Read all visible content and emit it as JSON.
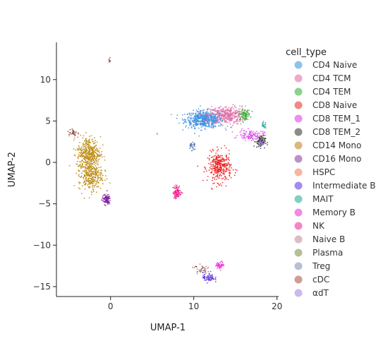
{
  "chart_data": {
    "type": "scatter",
    "xlabel": "UMAP-1",
    "ylabel": "UMAP-2",
    "xlim": [
      -6.5,
      20.2
    ],
    "ylim": [
      -16.2,
      14.5
    ],
    "xticks": [
      0,
      10,
      20
    ],
    "yticks": [
      10,
      5,
      0,
      -5,
      -10,
      -15
    ],
    "tick_labels_x": [
      "0",
      "10",
      "20"
    ],
    "tick_labels_y": [
      "10",
      "5",
      "0",
      "−5",
      "−10",
      "−15"
    ],
    "grid": false,
    "legend": {
      "title": "cell_type",
      "position": "right"
    },
    "series": [
      {
        "name": "CD4 Naive",
        "color": "#8ec3ee",
        "clusters": [
          {
            "x": 11.3,
            "y": 5.2,
            "sx": 1.15,
            "sy": 0.5,
            "n": 560
          }
        ]
      },
      {
        "name": "CD4 TCM",
        "color": "#efa9cb",
        "clusters": [
          {
            "x": 14.0,
            "y": 5.7,
            "sx": 1.1,
            "sy": 0.55,
            "n": 380
          }
        ]
      },
      {
        "name": "CD4 TEM",
        "color": "#8bd38d",
        "clusters": [
          {
            "x": 16.1,
            "y": 5.8,
            "sx": 0.35,
            "sy": 0.3,
            "n": 70
          }
        ]
      },
      {
        "name": "CD8 Naive",
        "color": "#f58683",
        "clusters": [
          {
            "x": 13.1,
            "y": -0.6,
            "sx": 0.7,
            "sy": 0.9,
            "n": 330
          }
        ]
      },
      {
        "name": "CD8 TEM_1",
        "color": "#ee8ef0",
        "clusters": [
          {
            "x": 16.9,
            "y": 3.3,
            "sx": 0.75,
            "sy": 0.3,
            "n": 110
          }
        ]
      },
      {
        "name": "CD8 TEM_2",
        "color": "#8a8c8b",
        "clusters": [
          {
            "x": 18.0,
            "y": 2.5,
            "sx": 0.3,
            "sy": 0.35,
            "n": 90
          }
        ]
      },
      {
        "name": "CD14 Mono",
        "color": "#dcb979",
        "clusters": [
          {
            "x": -2.6,
            "y": 1.1,
            "sx": 0.7,
            "sy": 1.0,
            "n": 380
          },
          {
            "x": -2.4,
            "y": -1.6,
            "sx": 0.7,
            "sy": 0.9,
            "n": 300
          }
        ]
      },
      {
        "name": "CD16 Mono",
        "color": "#c08fc9",
        "clusters": [
          {
            "x": -0.5,
            "y": -4.5,
            "sx": 0.25,
            "sy": 0.3,
            "n": 90
          }
        ]
      },
      {
        "name": "HSPC",
        "color": "#f8b4a2",
        "clusters": [
          {
            "x": 5.6,
            "y": 3.4,
            "sx": 0.05,
            "sy": 0.05,
            "n": 3
          }
        ]
      },
      {
        "name": "Intermediate B",
        "color": "#a68af0",
        "clusters": [
          {
            "x": 11.8,
            "y": -13.9,
            "sx": 0.35,
            "sy": 0.3,
            "n": 70
          }
        ]
      },
      {
        "name": "MAIT",
        "color": "#7dd1c4",
        "clusters": [
          {
            "x": 18.4,
            "y": 4.5,
            "sx": 0.15,
            "sy": 0.2,
            "n": 20
          }
        ]
      },
      {
        "name": "Memory B",
        "color": "#f28ae8",
        "clusters": [
          {
            "x": 13.2,
            "y": -12.4,
            "sx": 0.25,
            "sy": 0.2,
            "n": 50
          }
        ]
      },
      {
        "name": "NK",
        "color": "#f785c6",
        "clusters": [
          {
            "x": 8.0,
            "y": -3.6,
            "sx": 0.25,
            "sy": 0.4,
            "n": 90
          }
        ]
      },
      {
        "name": "Naive B",
        "color": "#dbbec3",
        "clusters": [
          {
            "x": 10.9,
            "y": -12.9,
            "sx": 0.35,
            "sy": 0.25,
            "n": 40
          }
        ]
      },
      {
        "name": "Plasma",
        "color": "#b4c097",
        "clusters": [
          {
            "x": 10.2,
            "y": -12.6,
            "sx": 0.05,
            "sy": 0.05,
            "n": 2
          }
        ]
      },
      {
        "name": "Treg",
        "color": "#b5c0d6",
        "clusters": [
          {
            "x": 9.8,
            "y": 2.0,
            "sx": 0.2,
            "sy": 0.3,
            "n": 30
          }
        ]
      },
      {
        "name": "cDC",
        "color": "#ce9d94",
        "clusters": [
          {
            "x": -4.5,
            "y": 3.6,
            "sx": 0.25,
            "sy": 0.25,
            "n": 30
          },
          {
            "x": -0.1,
            "y": 12.3,
            "sx": 0.05,
            "sy": 0.2,
            "n": 8
          }
        ]
      },
      {
        "name": "αdT",
        "color": "#cdb8f0",
        "clusters": [
          {
            "x": 18.1,
            "y": 2.3,
            "sx": 0.2,
            "sy": 0.2,
            "n": 20
          }
        ]
      }
    ]
  }
}
